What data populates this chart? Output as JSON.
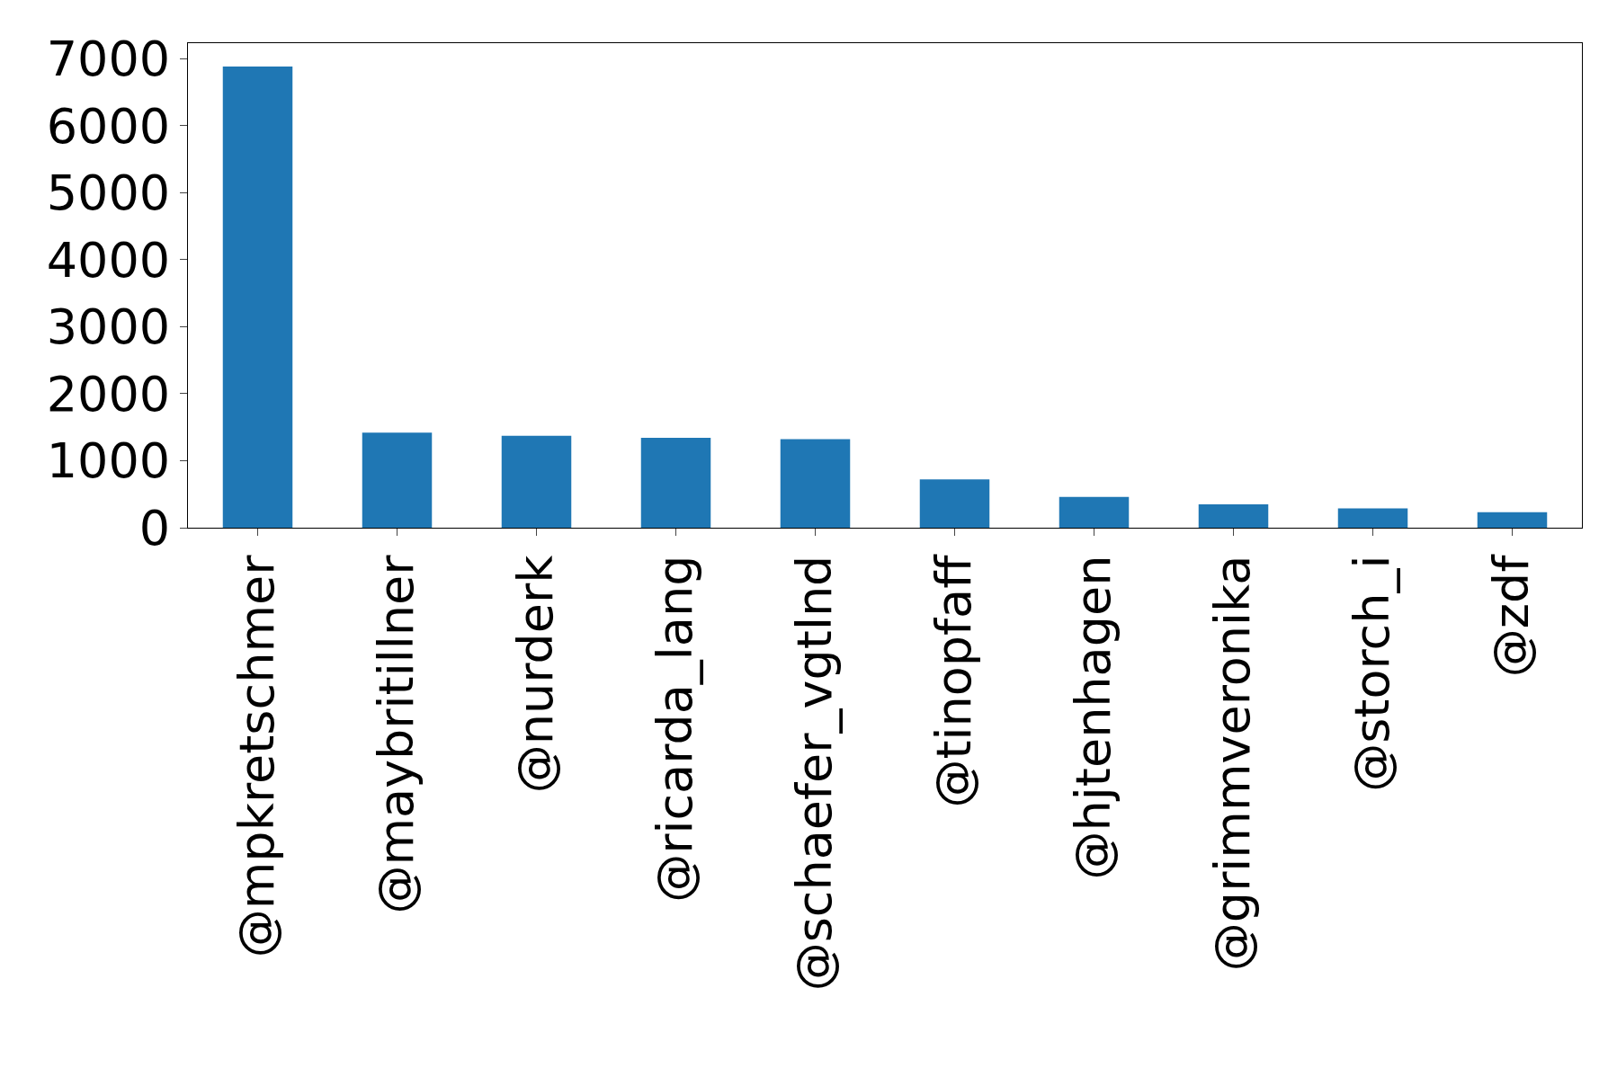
{
  "chart_data": {
    "type": "bar",
    "categories": [
      "@mpkretschmer",
      "@maybritillner",
      "@nurderk",
      "@ricarda_lang",
      "@schaefer_vgtlnd",
      "@tinopfaff",
      "@hjtenhagen",
      "@grimmveronika",
      "@storch_i",
      "@zdf"
    ],
    "values": [
      6880,
      1420,
      1370,
      1340,
      1320,
      720,
      460,
      350,
      290,
      230
    ],
    "color": "#1f77b4",
    "ylim": [
      0,
      7230
    ],
    "yticks": [
      0,
      1000,
      2000,
      3000,
      4000,
      5000,
      6000,
      7000
    ],
    "legend": false
  }
}
